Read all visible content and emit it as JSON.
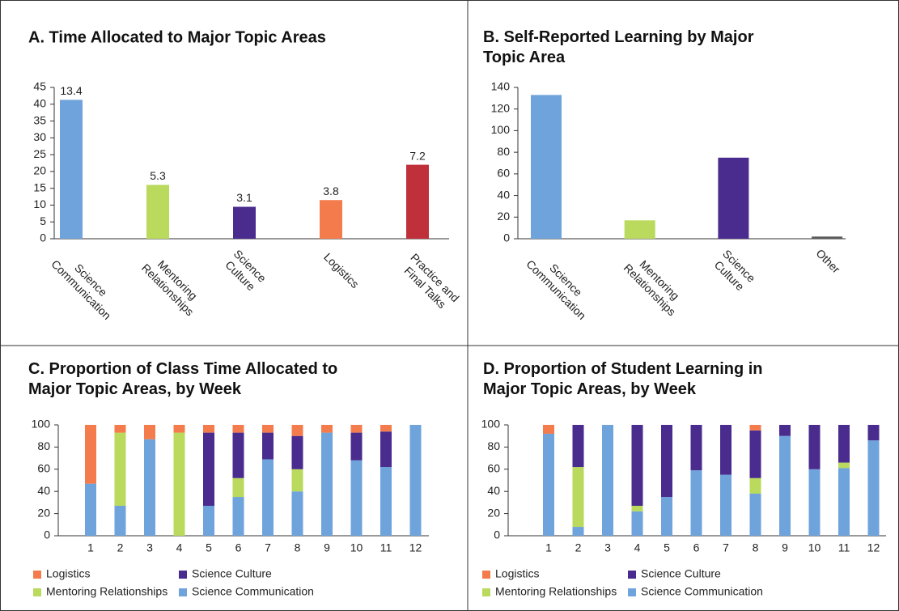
{
  "chart_data": [
    {
      "type": "bar",
      "title": "A. Time Allocated to Major Topic Areas",
      "categories": [
        "Science\nCommunication",
        "Mentoring\nRelationships",
        "Science\nCulture",
        "Logistics",
        "Practice and\nFinal Talks"
      ],
      "values": [
        41.3,
        16,
        9.5,
        11.5,
        22
      ],
      "annotations": [
        13.4,
        5.3,
        3.1,
        3.8,
        7.2
      ],
      "colors": [
        "#6fa3db",
        "#b9da5c",
        "#4a2b8e",
        "#f47c4c",
        "#c0303a"
      ],
      "ylim": [
        0,
        45
      ],
      "yticks": [
        0,
        5,
        10,
        15,
        20,
        25,
        30,
        35,
        40,
        45
      ]
    },
    {
      "type": "bar",
      "title": "B. Self-Reported Learning by Major\nTopic Area",
      "categories": [
        "Science\nCommunication",
        "Mentoring\nRelationships",
        "Science\nCulture",
        "Other"
      ],
      "values": [
        133,
        17,
        75,
        2
      ],
      "colors": [
        "#6fa3db",
        "#b9da5c",
        "#4a2b8e",
        "#5a5a5a"
      ],
      "ylim": [
        0,
        140
      ],
      "yticks": [
        0,
        20,
        40,
        60,
        80,
        100,
        120,
        140
      ]
    },
    {
      "type": "stacked_bar",
      "title": "C. Proportion of Class Time Allocated to\nMajor Topic Areas, by Week",
      "categories": [
        1,
        2,
        3,
        4,
        5,
        6,
        7,
        8,
        9,
        10,
        11,
        12
      ],
      "series": [
        {
          "name": "Logistics",
          "color": "#f47c4c",
          "values": [
            53,
            7,
            13,
            7,
            7,
            7,
            7,
            10,
            7,
            7,
            6,
            0
          ]
        },
        {
          "name": "Science Culture",
          "color": "#4a2b8e",
          "values": [
            0,
            0,
            0,
            0,
            66,
            41,
            24,
            30,
            0,
            25,
            32,
            0
          ]
        },
        {
          "name": "Mentoring Relationships",
          "color": "#b9da5c",
          "values": [
            0,
            66,
            0,
            93,
            0,
            17,
            0,
            20,
            0,
            0,
            0,
            0
          ]
        },
        {
          "name": "Science Communication",
          "color": "#6fa3db",
          "values": [
            47,
            27,
            87,
            0,
            27,
            35,
            69,
            40,
            93,
            68,
            62,
            100
          ]
        }
      ],
      "ylim": [
        0,
        100
      ],
      "yticks": [
        0,
        20,
        40,
        60,
        80,
        100
      ]
    },
    {
      "type": "stacked_bar",
      "title": "D. Proportion of Student Learning in\nMajor Topic Areas, by Week",
      "categories": [
        1,
        2,
        3,
        4,
        5,
        6,
        7,
        8,
        9,
        10,
        11,
        12
      ],
      "series": [
        {
          "name": "Logistics",
          "color": "#f47c4c",
          "values": [
            8,
            0,
            0,
            0,
            0,
            0,
            0,
            5,
            0,
            0,
            0,
            0
          ]
        },
        {
          "name": "Science Culture",
          "color": "#4a2b8e",
          "values": [
            0,
            38,
            0,
            73,
            65,
            41,
            45,
            43,
            10,
            40,
            34,
            14
          ]
        },
        {
          "name": "Mentoring Relationships",
          "color": "#b9da5c",
          "values": [
            0,
            54,
            0,
            5,
            0,
            0,
            0,
            14,
            0,
            0,
            5,
            0
          ]
        },
        {
          "name": "Science Communication",
          "color": "#6fa3db",
          "values": [
            92,
            8,
            100,
            22,
            35,
            59,
            55,
            38,
            90,
            60,
            61,
            86
          ]
        }
      ],
      "ylim": [
        0,
        100
      ],
      "yticks": [
        0,
        20,
        40,
        60,
        80,
        100
      ]
    }
  ]
}
